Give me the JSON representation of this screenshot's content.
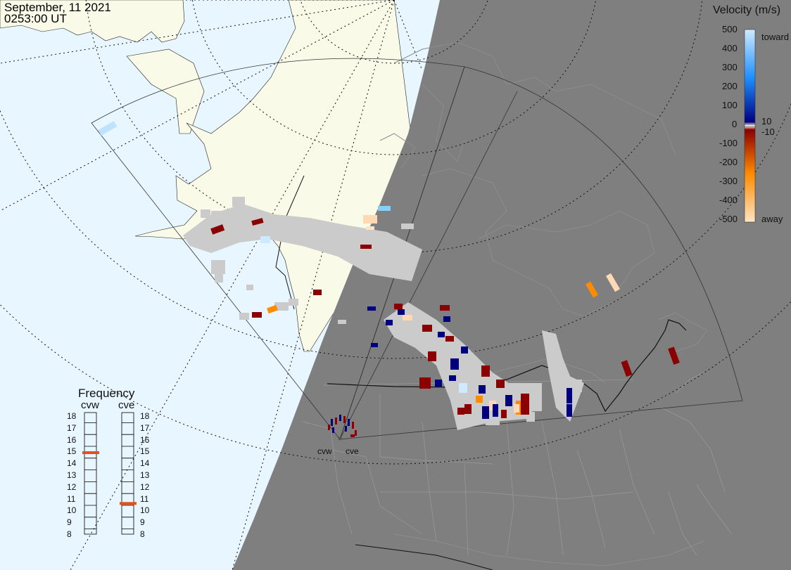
{
  "header": {
    "date": "September, 11 2021",
    "time": "0253:00 UT"
  },
  "legend": {
    "title": "Velocity (m/s)",
    "ticks": [
      "500",
      "400",
      "300",
      "200",
      "100",
      "0",
      "-100",
      "-200",
      "-300",
      "-400",
      "-500"
    ],
    "toward_label": "toward",
    "away_label": "away",
    "pos_threshold": "10",
    "neg_threshold": "-10",
    "colors": {
      "toward_light": "#cfeaff",
      "toward_mid": "#1e90ff",
      "toward_dark": "#00007f",
      "away_dark": "#8b0000",
      "away_mid": "#ff8c00",
      "away_light": "#ffe4c4"
    }
  },
  "frequency": {
    "title": "Frequency",
    "radars": [
      {
        "name": "cvw",
        "value_mhz": 14.9
      },
      {
        "name": "cve",
        "value_mhz": 10.6
      }
    ],
    "ticks": [
      "18",
      "17",
      "16",
      "15",
      "14",
      "13",
      "12",
      "11",
      "10",
      "9",
      "8"
    ],
    "indicator_color": "#e2501c"
  },
  "map": {
    "colors": {
      "ocean": "#e8f6ff",
      "land": "#fafae8",
      "night": "#7f7f7f",
      "ground_scatter": "#cbcbcb"
    },
    "sites": [
      {
        "label": "cvw"
      },
      {
        "label": "cve"
      }
    ]
  }
}
